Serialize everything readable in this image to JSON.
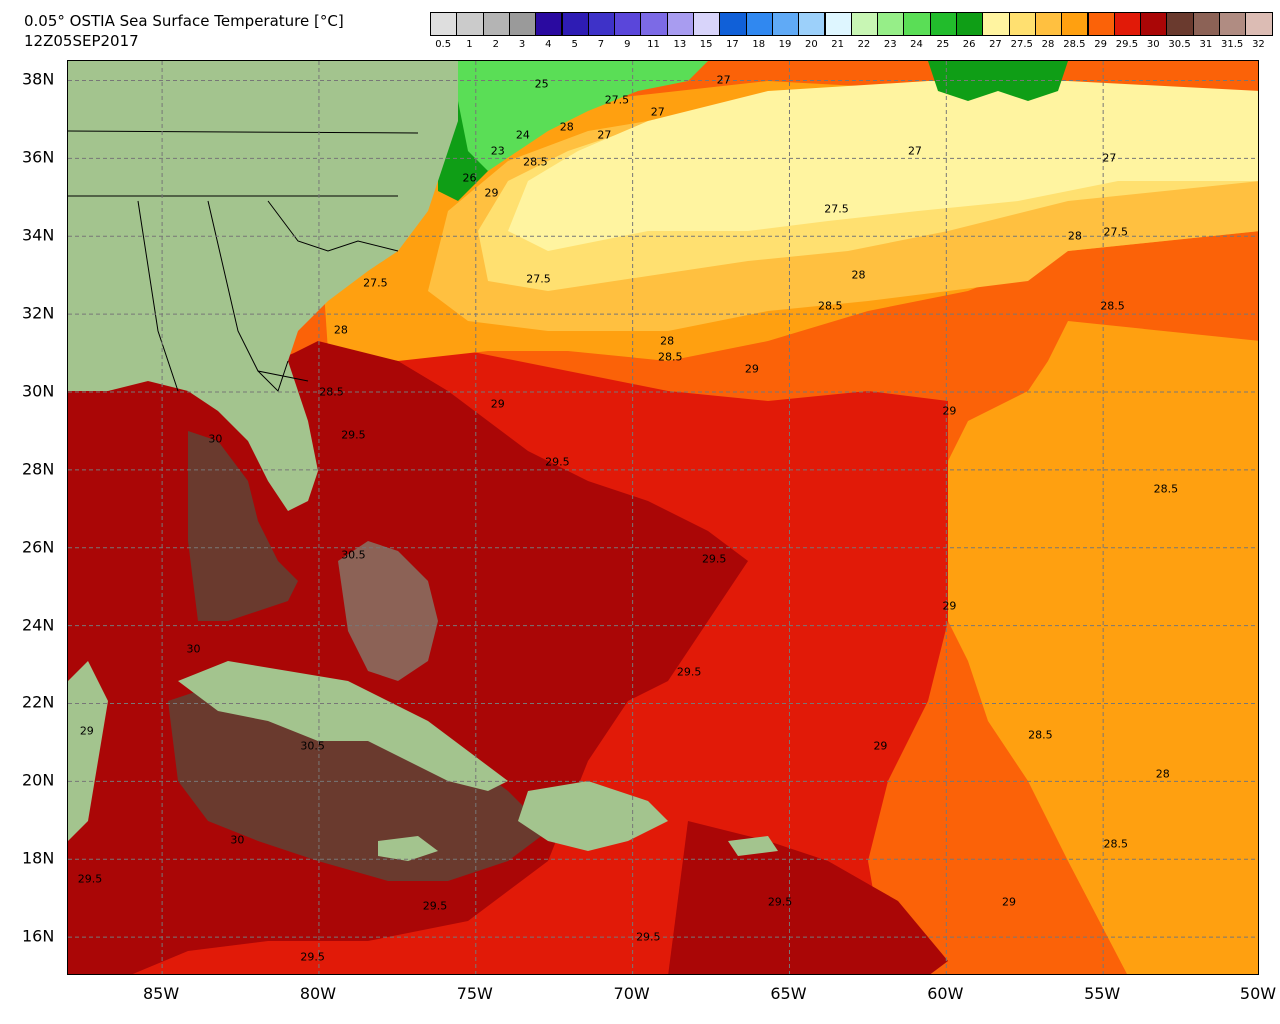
{
  "header": {
    "title": "0.05° OSTIA Sea Surface Temperature [°C]",
    "subtitle": "12Z05SEP2017"
  },
  "colorbar": {
    "levels": [
      {
        "label": "0.5",
        "color": "#dedede"
      },
      {
        "label": "1",
        "color": "#cbcbcb"
      },
      {
        "label": "2",
        "color": "#b4b4b4"
      },
      {
        "label": "3",
        "color": "#9a9a9a"
      },
      {
        "label": "4",
        "color": "#2a0aa0"
      },
      {
        "label": "5",
        "color": "#2e1cb4"
      },
      {
        "label": "7",
        "color": "#3e32c8"
      },
      {
        "label": "9",
        "color": "#5a46da"
      },
      {
        "label": "11",
        "color": "#7c6ae6"
      },
      {
        "label": "13",
        "color": "#a89cf0"
      },
      {
        "label": "15",
        "color": "#d8d4fa"
      },
      {
        "label": "17",
        "color": "#1060d8"
      },
      {
        "label": "18",
        "color": "#3088f0"
      },
      {
        "label": "19",
        "color": "#60aaf6"
      },
      {
        "label": "20",
        "color": "#9cd0fa"
      },
      {
        "label": "21",
        "color": "#def6ff"
      },
      {
        "label": "22",
        "color": "#c8f6b4"
      },
      {
        "label": "23",
        "color": "#96ee88"
      },
      {
        "label": "24",
        "color": "#5ade56"
      },
      {
        "label": "25",
        "color": "#22bc2c"
      },
      {
        "label": "26",
        "color": "#0f9e16"
      },
      {
        "label": "27",
        "color": "#fff4a0"
      },
      {
        "label": "27.5",
        "color": "#ffe070"
      },
      {
        "label": "28",
        "color": "#ffc040"
      },
      {
        "label": "28.5",
        "color": "#ffa010"
      },
      {
        "label": "29",
        "color": "#fb6208"
      },
      {
        "label": "29.5",
        "color": "#e11a08"
      },
      {
        "label": "30",
        "color": "#aa0606"
      },
      {
        "label": "30.5",
        "color": "#6a3a2e"
      },
      {
        "label": "31",
        "color": "#8c6256"
      },
      {
        "label": "31.5",
        "color": "#b08c82"
      },
      {
        "label": "32",
        "color": "#dcbcb4"
      }
    ]
  },
  "axes": {
    "lat_labels": [
      "38N",
      "36N",
      "34N",
      "32N",
      "30N",
      "28N",
      "26N",
      "24N",
      "22N",
      "20N",
      "18N",
      "16N"
    ],
    "lon_labels": [
      "85W",
      "80W",
      "75W",
      "70W",
      "65W",
      "60W",
      "55W",
      "50W"
    ],
    "lat_values": [
      38,
      36,
      34,
      32,
      30,
      28,
      26,
      24,
      22,
      20,
      18,
      16
    ],
    "lon_values": [
      -85,
      -80,
      -75,
      -70,
      -65,
      -60,
      -55,
      -50
    ],
    "lon_range": [
      -88,
      -50
    ],
    "lat_range": [
      15,
      38.5
    ],
    "grid": "dashed"
  },
  "contour_labels": [
    {
      "text": "25",
      "lon": -72.9,
      "lat": 37.9
    },
    {
      "text": "27.5",
      "lon": -70.5,
      "lat": 37.5
    },
    {
      "text": "27",
      "lon": -69.2,
      "lat": 37.2
    },
    {
      "text": "27",
      "lon": -67.1,
      "lat": 38.0
    },
    {
      "text": "28",
      "lon": -72.1,
      "lat": 36.8
    },
    {
      "text": "27",
      "lon": -70.9,
      "lat": 36.6
    },
    {
      "text": "24",
      "lon": -73.5,
      "lat": 36.6
    },
    {
      "text": "23",
      "lon": -74.3,
      "lat": 36.2
    },
    {
      "text": "28.5",
      "lon": -73.1,
      "lat": 35.9
    },
    {
      "text": "26",
      "lon": -75.2,
      "lat": 35.5
    },
    {
      "text": "29",
      "lon": -74.5,
      "lat": 35.1
    },
    {
      "text": "27",
      "lon": -61.0,
      "lat": 36.2
    },
    {
      "text": "27",
      "lon": -54.8,
      "lat": 36.0
    },
    {
      "text": "27.5",
      "lon": -63.5,
      "lat": 34.7
    },
    {
      "text": "27.5",
      "lon": -54.6,
      "lat": 34.1
    },
    {
      "text": "28",
      "lon": -55.9,
      "lat": 34.0
    },
    {
      "text": "27.5",
      "lon": -78.2,
      "lat": 32.8
    },
    {
      "text": "27.5",
      "lon": -73.0,
      "lat": 32.9
    },
    {
      "text": "28",
      "lon": -62.8,
      "lat": 33.0
    },
    {
      "text": "28.5",
      "lon": -63.7,
      "lat": 32.2
    },
    {
      "text": "28.5",
      "lon": -54.7,
      "lat": 32.2
    },
    {
      "text": "28",
      "lon": -79.3,
      "lat": 31.6
    },
    {
      "text": "28",
      "lon": -68.9,
      "lat": 31.3
    },
    {
      "text": "28.5",
      "lon": -68.8,
      "lat": 30.9
    },
    {
      "text": "29",
      "lon": -66.2,
      "lat": 30.6
    },
    {
      "text": "28.5",
      "lon": -79.6,
      "lat": 30.0
    },
    {
      "text": "29",
      "lon": -74.3,
      "lat": 29.7
    },
    {
      "text": "29",
      "lon": -59.9,
      "lat": 29.5
    },
    {
      "text": "29.5",
      "lon": -78.9,
      "lat": 28.9
    },
    {
      "text": "30",
      "lon": -83.3,
      "lat": 28.8
    },
    {
      "text": "29.5",
      "lon": -72.4,
      "lat": 28.2
    },
    {
      "text": "28.5",
      "lon": -53.0,
      "lat": 27.5
    },
    {
      "text": "30.5",
      "lon": -78.9,
      "lat": 25.8
    },
    {
      "text": "29.5",
      "lon": -67.4,
      "lat": 25.7
    },
    {
      "text": "29",
      "lon": -59.9,
      "lat": 24.5
    },
    {
      "text": "30",
      "lon": -84.0,
      "lat": 23.4
    },
    {
      "text": "29.5",
      "lon": -68.2,
      "lat": 22.8
    },
    {
      "text": "29",
      "lon": -87.4,
      "lat": 21.3
    },
    {
      "text": "28.5",
      "lon": -57.0,
      "lat": 21.2
    },
    {
      "text": "29",
      "lon": -62.1,
      "lat": 20.9
    },
    {
      "text": "30.5",
      "lon": -80.2,
      "lat": 20.9
    },
    {
      "text": "28",
      "lon": -53.1,
      "lat": 20.2
    },
    {
      "text": "30",
      "lon": -82.6,
      "lat": 18.5
    },
    {
      "text": "28.5",
      "lon": -54.6,
      "lat": 18.4
    },
    {
      "text": "29.5",
      "lon": -87.3,
      "lat": 17.5
    },
    {
      "text": "29.5",
      "lon": -76.3,
      "lat": 16.8
    },
    {
      "text": "29.5",
      "lon": -65.3,
      "lat": 16.9
    },
    {
      "text": "29",
      "lon": -58.0,
      "lat": 16.9
    },
    {
      "text": "29.5",
      "lon": -69.5,
      "lat": 16.0
    },
    {
      "text": "29.5",
      "lon": -80.2,
      "lat": 15.5
    }
  ]
}
